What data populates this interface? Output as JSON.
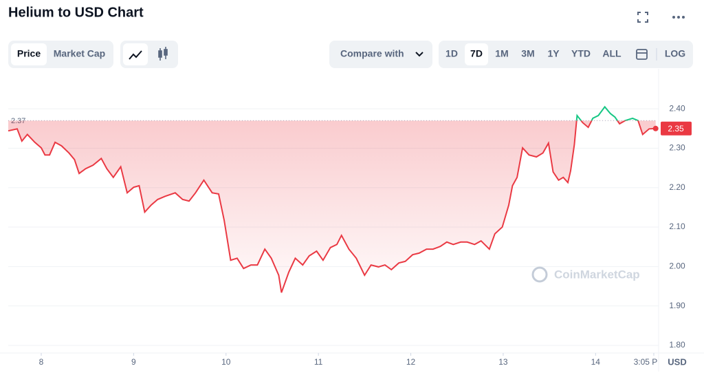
{
  "ui": {
    "title": "Helium to USD Chart",
    "tabs": [
      "Price",
      "Market Cap"
    ],
    "selected_tab": 0,
    "compare": "Compare with",
    "ranges": [
      "1D",
      "7D",
      "1M",
      "3M",
      "1Y",
      "YTD",
      "ALL"
    ],
    "selected_range": 1,
    "log": "LOG",
    "watermark": "CoinMarketCap"
  },
  "chart_data": {
    "type": "line",
    "color": "#ea3943",
    "color_above": "#16c784",
    "x": [
      7.643,
      7.74,
      7.79,
      7.85,
      7.93,
      8.0,
      8.04,
      8.09,
      8.15,
      8.22,
      8.3,
      8.36,
      8.41,
      8.48,
      8.56,
      8.65,
      8.71,
      8.78,
      8.86,
      8.93,
      9.0,
      9.06,
      9.12,
      9.19,
      9.26,
      9.34,
      9.45,
      9.53,
      9.6,
      9.67,
      9.76,
      9.85,
      9.92,
      9.98,
      10.05,
      10.12,
      10.19,
      10.27,
      10.34,
      10.42,
      10.49,
      10.57,
      10.6,
      10.68,
      10.75,
      10.83,
      10.9,
      10.98,
      11.05,
      11.13,
      11.2,
      11.25,
      11.33,
      11.41,
      11.5,
      11.57,
      11.65,
      11.72,
      11.79,
      11.87,
      11.94,
      12.02,
      12.09,
      12.17,
      12.24,
      12.32,
      12.39,
      12.46,
      12.54,
      12.61,
      12.69,
      12.76,
      12.85,
      12.91,
      12.99,
      13.06,
      13.1,
      13.15,
      13.21,
      13.28,
      13.36,
      13.43,
      13.49,
      13.54,
      13.6,
      13.65,
      13.7,
      13.73,
      13.77,
      13.8,
      13.86,
      13.92,
      13.97,
      14.03,
      14.1,
      14.16,
      14.21,
      14.26,
      14.32,
      14.4,
      14.46,
      14.51,
      14.58,
      14.65
    ],
    "values": [
      2.344,
      2.349,
      2.318,
      2.335,
      2.315,
      2.301,
      2.283,
      2.283,
      2.315,
      2.306,
      2.288,
      2.271,
      2.236,
      2.248,
      2.257,
      2.274,
      2.248,
      2.226,
      2.253,
      2.187,
      2.201,
      2.205,
      2.138,
      2.156,
      2.17,
      2.178,
      2.187,
      2.17,
      2.166,
      2.187,
      2.219,
      2.187,
      2.184,
      2.117,
      2.016,
      2.021,
      1.995,
      2.004,
      2.004,
      2.044,
      2.021,
      1.978,
      1.934,
      1.986,
      2.021,
      2.004,
      2.027,
      2.039,
      2.016,
      2.048,
      2.056,
      2.079,
      2.044,
      2.021,
      1.978,
      2.004,
      1.999,
      2.004,
      1.992,
      2.009,
      2.013,
      2.03,
      2.034,
      2.044,
      2.044,
      2.051,
      2.062,
      2.056,
      2.062,
      2.062,
      2.056,
      2.065,
      2.044,
      2.083,
      2.1,
      2.156,
      2.205,
      2.226,
      2.301,
      2.283,
      2.278,
      2.288,
      2.313,
      2.24,
      2.219,
      2.226,
      2.213,
      2.243,
      2.309,
      2.383,
      2.365,
      2.353,
      2.376,
      2.383,
      2.405,
      2.388,
      2.379,
      2.362,
      2.37,
      2.376,
      2.37,
      2.335,
      2.349,
      2.35
    ],
    "reference_value": 2.37,
    "current_value": 2.35,
    "currency": "USD",
    "xlim": [
      7.643,
      14.66
    ],
    "ylim": [
      1.786,
      2.47
    ],
    "xticks": [
      8,
      9,
      10,
      11,
      12,
      13,
      14,
      {
        "value": 14.63,
        "label": "3:05 P"
      }
    ],
    "yticks": [
      {
        "value": 1.8,
        "label": "1.80"
      },
      {
        "value": 1.9,
        "label": "1.90"
      },
      {
        "value": 2.0,
        "label": "2.00"
      },
      {
        "value": 2.1,
        "label": "2.10"
      },
      {
        "value": 2.2,
        "label": "2.20"
      },
      {
        "value": 2.3,
        "label": "2.30"
      },
      {
        "value": 2.4,
        "label": "2.40"
      }
    ],
    "grid": true
  }
}
